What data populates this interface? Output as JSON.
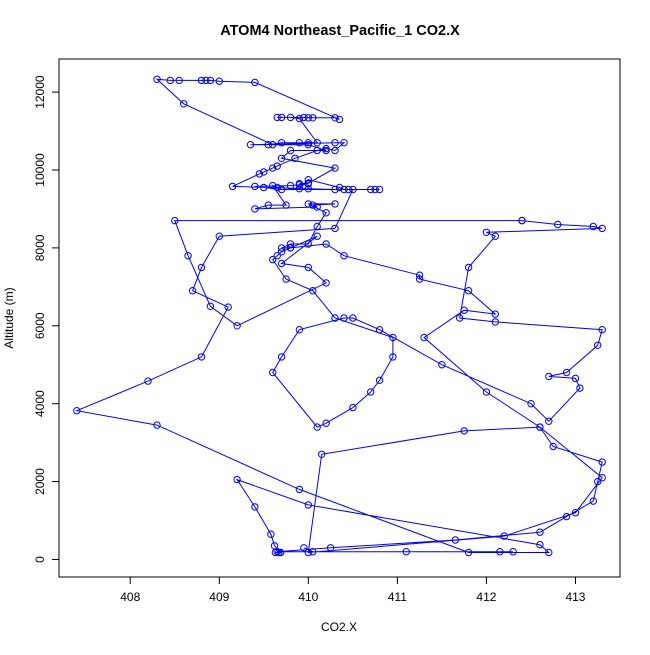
{
  "chart_data": {
    "type": "line",
    "title": "ATOM4 Northeast_Pacific_1 CO2.X",
    "xlabel": "CO2.X",
    "ylabel": "Altitude (m)",
    "xlim": [
      407.2,
      413.5
    ],
    "ylim": [
      -450,
      12850
    ],
    "x_ticks": [
      "408",
      "409",
      "410",
      "411",
      "412",
      "413"
    ],
    "y_ticks": [
      "0",
      "2000",
      "4000",
      "6000",
      "8000",
      "10000",
      "12000"
    ],
    "series": [
      {
        "color": "#0000ff",
        "marker": "open-circle",
        "x": [
          409.63,
          409.67,
          409.69,
          409.62,
          409.58,
          409.4,
          409.2,
          410.0,
          412.6,
          412.7,
          411.8,
          409.9,
          408.3,
          407.4,
          408.2,
          408.8,
          409.1,
          408.7,
          408.8,
          409.0,
          410.3,
          410.5,
          410.7,
          409.7,
          409.5,
          409.4,
          409.8,
          409.9,
          410.0,
          409.9,
          410.0,
          410.3,
          409.7,
          409.8,
          410.2,
          410.0,
          409.6,
          408.6,
          408.3,
          408.45,
          408.55,
          408.8,
          408.85,
          408.9,
          409.0,
          409.4,
          410.35,
          410.3,
          410.05,
          410.0,
          409.95,
          409.7,
          409.65,
          409.8,
          409.9,
          410.1,
          410.0,
          409.9,
          409.7,
          409.55,
          409.35,
          410.3,
          410.4,
          410.3,
          410.2,
          410.1,
          409.85,
          409.65,
          409.6,
          409.5,
          409.45,
          409.15,
          410.0,
          410.3,
          410.75,
          410.8,
          410.45,
          410.4,
          410.35,
          410.0,
          409.9,
          409.65,
          409.6,
          409.75,
          409.55,
          409.4,
          410.1,
          410.05,
          410.3,
          410.0,
          410.2,
          410.1,
          410.0,
          409.8,
          409.7,
          409.8,
          410.1,
          409.7,
          410.0,
          410.2,
          409.2,
          408.9,
          408.65,
          408.5,
          412.4,
          412.4,
          412.8,
          413.2,
          413.3,
          412.0,
          412.1,
          411.8,
          411.7,
          412.1,
          413.3,
          413.25,
          412.9,
          412.7,
          413.0,
          413.05,
          412.7,
          412.5,
          411.5,
          410.8,
          410.5,
          410.4,
          409.9,
          409.7,
          409.6,
          410.1,
          410.2,
          410.5,
          410.7,
          410.8,
          410.95,
          410.95,
          410.3,
          410.05,
          409.75,
          409.6,
          409.65,
          409.7,
          409.8,
          410.2,
          410.4,
          411.25,
          411.25,
          411.8,
          412.1,
          411.75,
          411.3,
          412.0,
          412.6,
          413.3,
          413.0,
          412.2,
          410.0,
          410.15,
          411.75,
          412.6,
          412.75,
          413.3,
          413.25,
          413.2,
          412.9,
          412.6,
          411.65,
          410.25,
          409.65,
          411.1,
          412.3,
          412.15,
          410.05,
          409.95
        ],
        "y": [
          180,
          180,
          180,
          350,
          650,
          1350,
          2050,
          1400,
          380,
          180,
          180,
          1800,
          3450,
          3820,
          4580,
          5200,
          6480,
          6900,
          7500,
          8300,
          8500,
          9500,
          9500,
          9500,
          9550,
          9580,
          9600,
          9620,
          9640,
          9650,
          9660,
          10050,
          10300,
          10500,
          10500,
          10650,
          10650,
          11700,
          12330,
          12300,
          12300,
          12300,
          12300,
          12300,
          12280,
          12250,
          11300,
          11340,
          11340,
          11340,
          11350,
          11350,
          11350,
          11350,
          11320,
          10700,
          10700,
          10700,
          10700,
          10650,
          10650,
          10700,
          10700,
          10500,
          10550,
          10500,
          10300,
          10100,
          10050,
          9950,
          9900,
          9580,
          9520,
          9500,
          9500,
          9500,
          9500,
          9500,
          9550,
          9750,
          9520,
          9550,
          9600,
          9100,
          9100,
          9000,
          9050,
          9100,
          9130,
          9130,
          8900,
          8550,
          8100,
          8100,
          8000,
          8000,
          8300,
          7600,
          7500,
          7100,
          6000,
          6500,
          7800,
          8700,
          8700,
          8700,
          8600,
          8550,
          8500,
          8400,
          8300,
          7500,
          6200,
          6100,
          5900,
          5500,
          4800,
          4700,
          4650,
          4400,
          3550,
          4000,
          5000,
          5900,
          6200,
          6200,
          5900,
          5200,
          4800,
          3400,
          3500,
          3900,
          4300,
          4600,
          5200,
          5700,
          6200,
          6900,
          7200,
          7700,
          7800,
          7900,
          8000,
          8100,
          7800,
          7300,
          7200,
          6900,
          6300,
          6400,
          5700,
          4300,
          3400,
          2100,
          1200,
          600,
          180,
          2700,
          3300,
          3400,
          2900,
          2500,
          2000,
          1500,
          1100,
          700,
          500,
          300,
          200,
          200,
          200,
          200,
          200,
          300
        ]
      }
    ]
  }
}
